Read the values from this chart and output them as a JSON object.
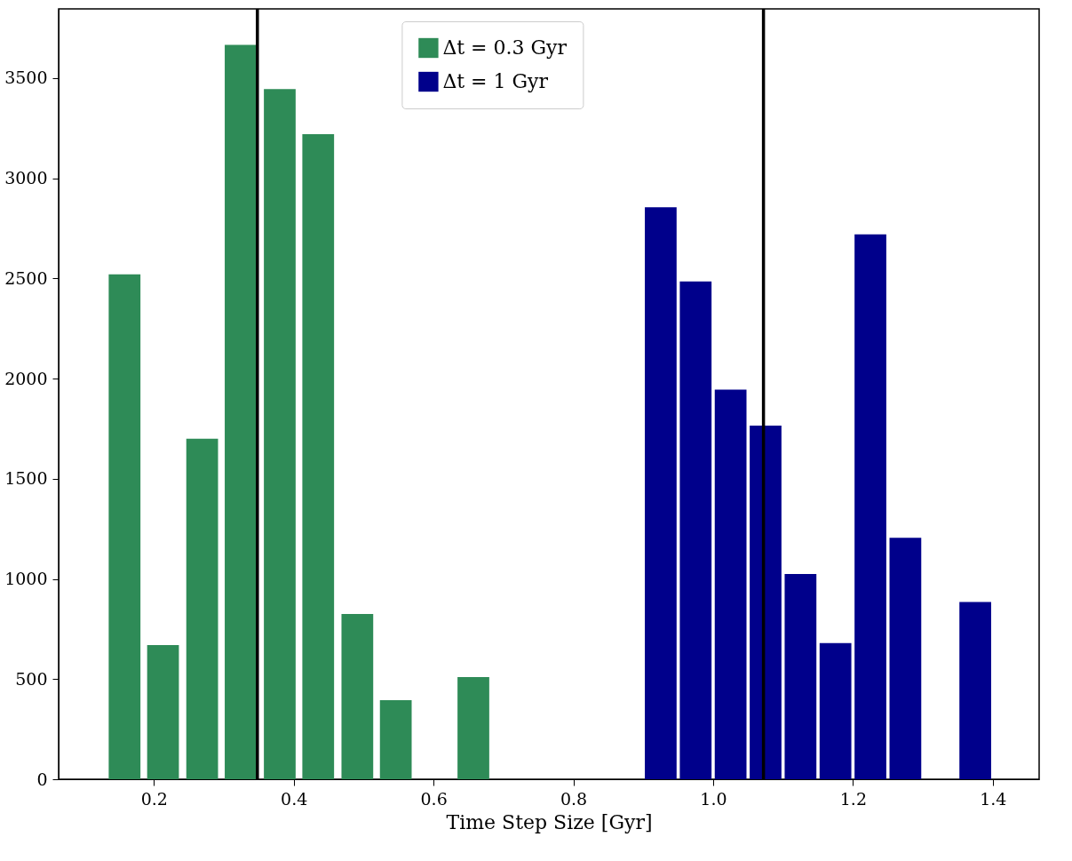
{
  "chart_data": {
    "type": "bar",
    "xlabel": "Time Step Size [Gyr]",
    "series": [
      {
        "name": "Δt = 0.3 Gyr",
        "color": "#2e8b57",
        "x": [
          0.158,
          0.213,
          0.269,
          0.324,
          0.38,
          0.435,
          0.491,
          0.546,
          0.602,
          0.657
        ],
        "values": [
          2520,
          670,
          1700,
          3665,
          3445,
          3220,
          825,
          395,
          0,
          510
        ]
      },
      {
        "name": "Δt = 1 Gyr",
        "color": "#00008b",
        "x": [
          0.925,
          0.975,
          1.025,
          1.075,
          1.125,
          1.175,
          1.225,
          1.275,
          1.325,
          1.375
        ],
        "values": [
          2855,
          2485,
          1945,
          1765,
          1025,
          680,
          2720,
          1205,
          0,
          885
        ]
      }
    ],
    "ref_lines": [
      {
        "axis": "x",
        "value": 0.348,
        "color": "#000000"
      },
      {
        "axis": "x",
        "value": 1.072,
        "color": "#000000"
      }
    ],
    "xlim": [
      0.07,
      1.46
    ],
    "ylim": [
      0,
      3845
    ],
    "xticks": [
      0.2,
      0.4,
      0.6,
      0.8,
      {
        "value": 1,
        "label": "1.0"
      },
      1.2,
      1.4
    ],
    "yticks": [
      0,
      500,
      1000,
      1500,
      2000,
      2500,
      3000,
      3500
    ],
    "grid": false,
    "legend": "top"
  }
}
